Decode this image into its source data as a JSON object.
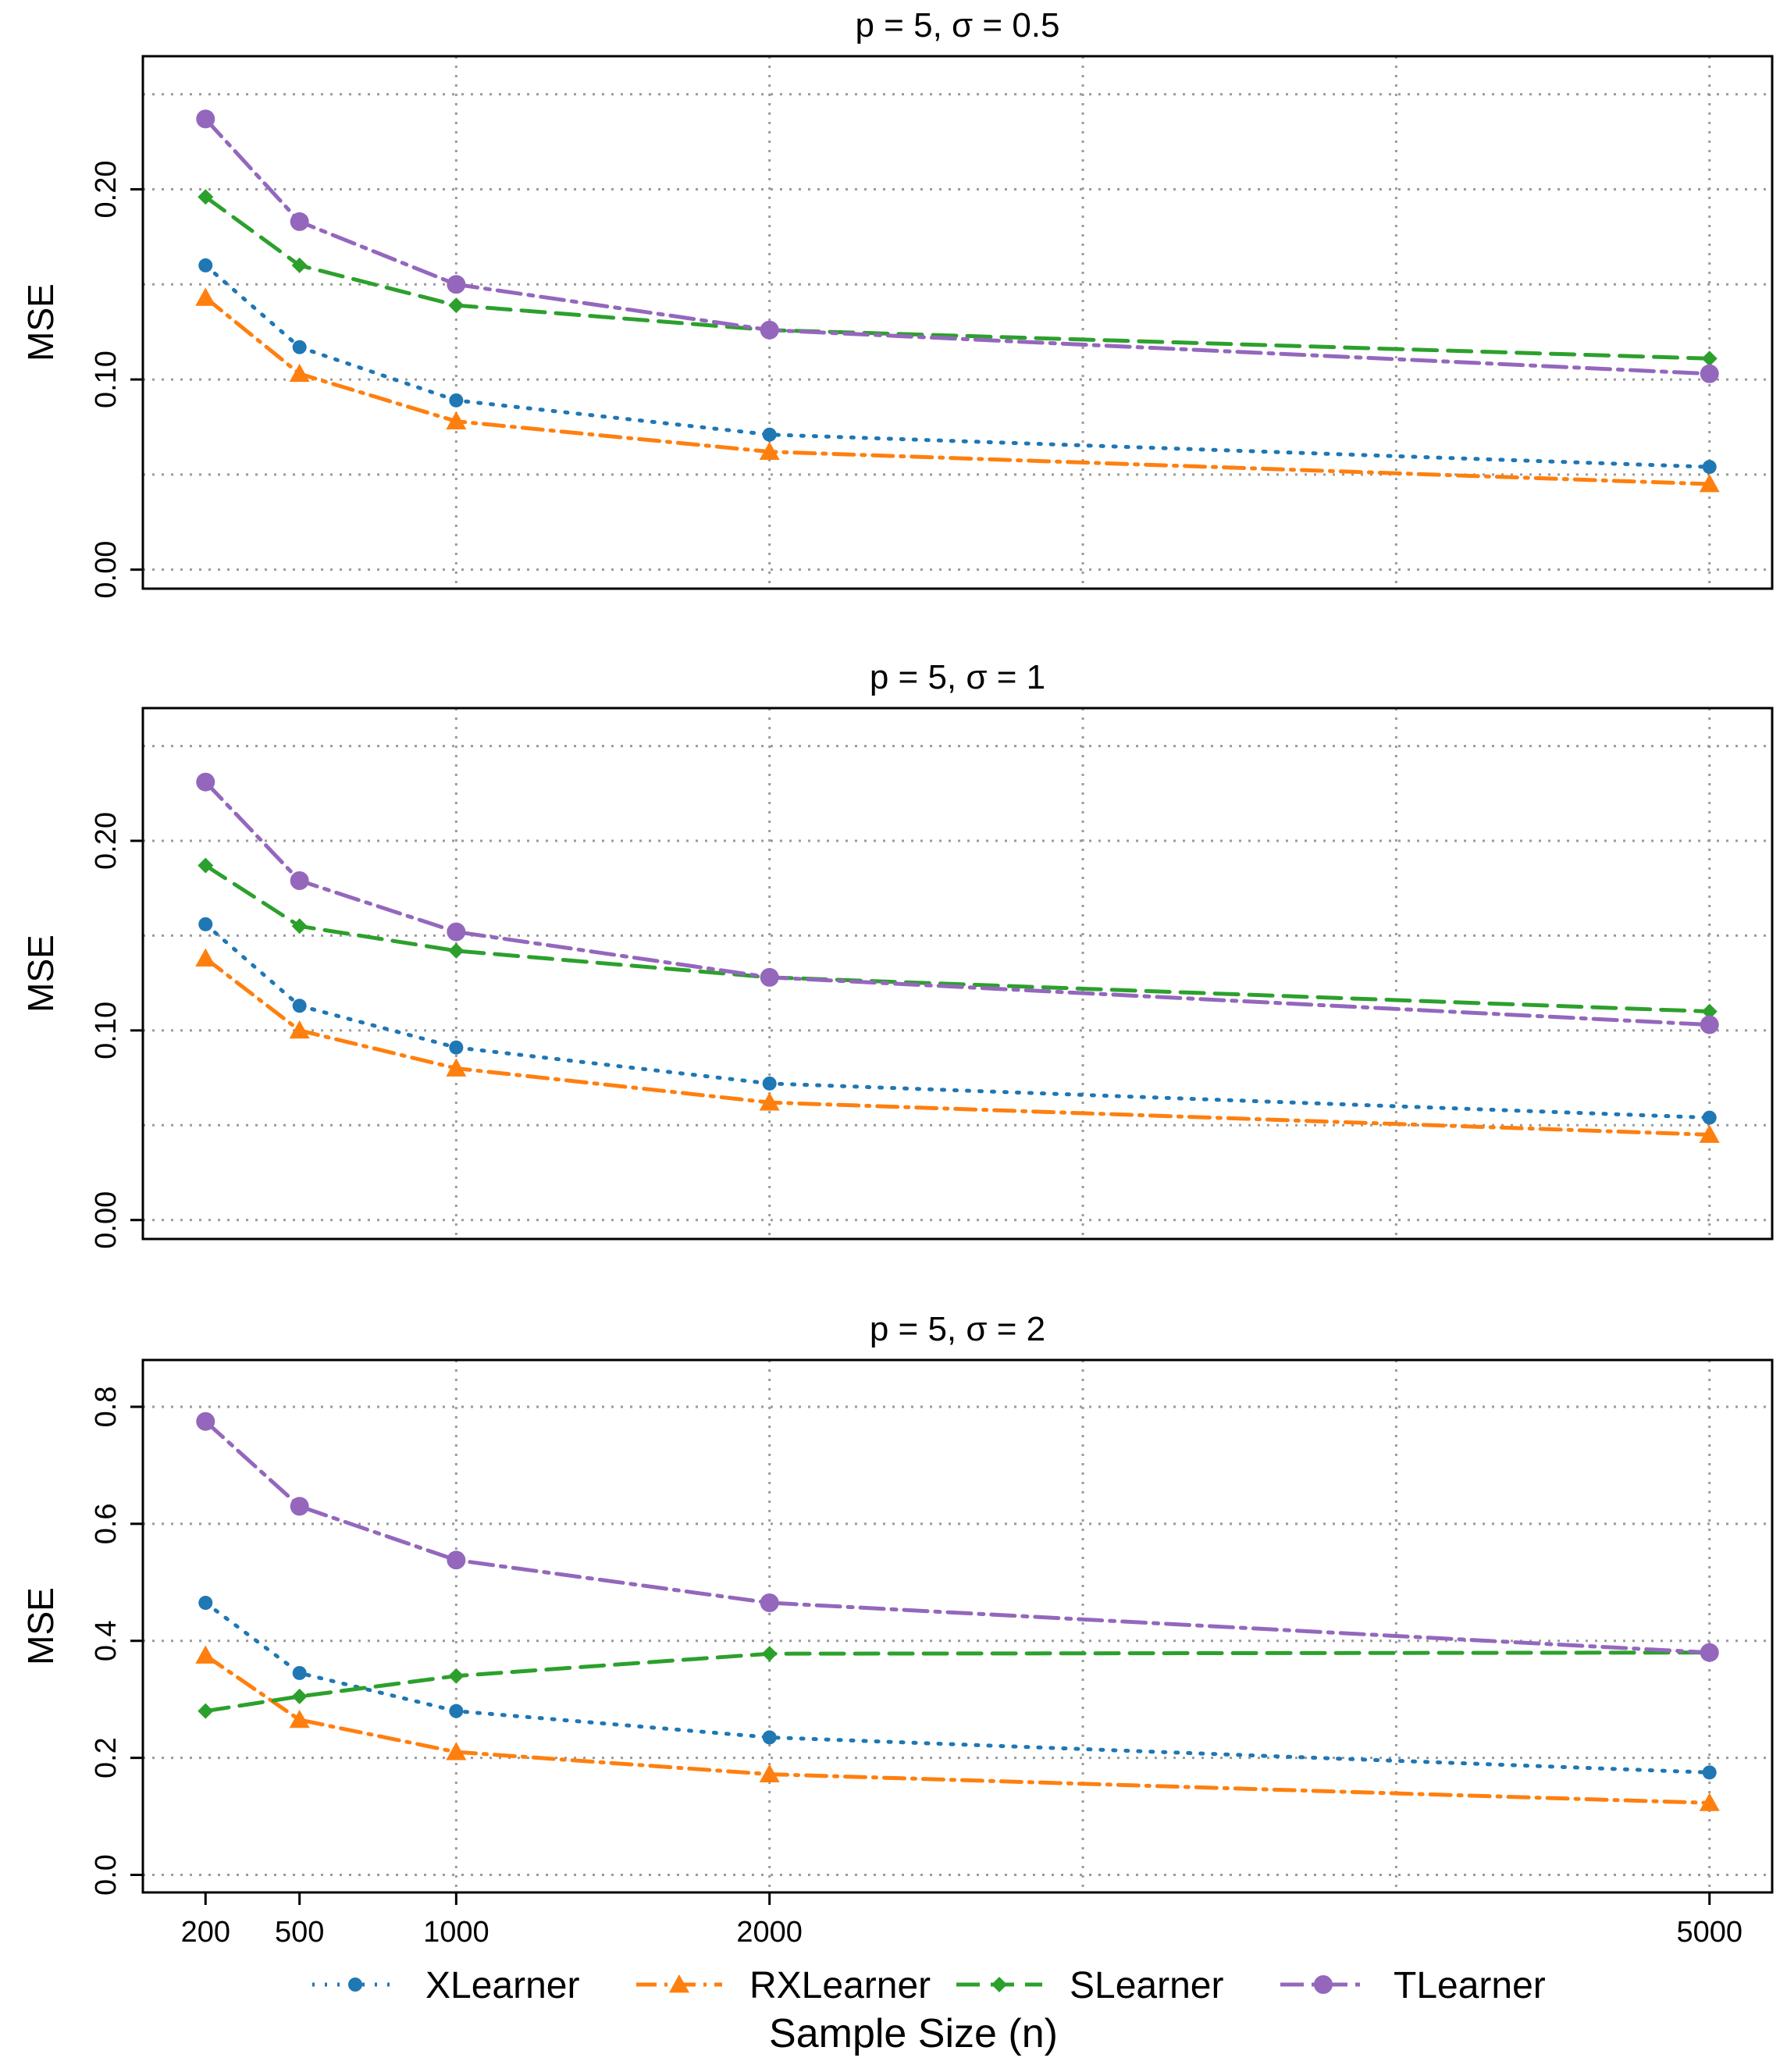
{
  "chart_data": {
    "type": "line",
    "xlabel": "Sample Size (n)",
    "ylabel": "MSE",
    "x": [
      200,
      500,
      1000,
      2000,
      5000
    ],
    "xticks": [
      "200",
      "500",
      "1000",
      "2000",
      "5000"
    ],
    "xlim": [
      0,
      5200
    ],
    "grid": true,
    "legend_position": "bottom",
    "series_styles": [
      {
        "name": "XLearner",
        "color": "#1f77b4",
        "marker": "circle",
        "dash": "dotted"
      },
      {
        "name": "RXLearner",
        "color": "#ff7f0e",
        "marker": "triangle",
        "dash": "dotdash"
      },
      {
        "name": "SLearner",
        "color": "#2ca02c",
        "marker": "diamond",
        "dash": "dashed"
      },
      {
        "name": "TLearner",
        "color": "#9467bd",
        "marker": "circle-large",
        "dash": "longdash-dot"
      }
    ],
    "panels": [
      {
        "title": "p = 5, σ = 0.5",
        "ylim": [
          -0.01,
          0.27
        ],
        "yticks": [
          0.0,
          0.1,
          0.2
        ],
        "ytick_labels": [
          "0.00",
          "0.10",
          "0.20"
        ],
        "ygrid": [
          0.0,
          0.05,
          0.1,
          0.15,
          0.2,
          0.25
        ],
        "series": [
          {
            "name": "XLearner",
            "values": [
              0.16,
              0.117,
              0.089,
              0.071,
              0.054
            ]
          },
          {
            "name": "RXLearner",
            "values": [
              0.143,
              0.103,
              0.078,
              0.062,
              0.045
            ]
          },
          {
            "name": "SLearner",
            "values": [
              0.196,
              0.16,
              0.139,
              0.126,
              0.111
            ]
          },
          {
            "name": "TLearner",
            "values": [
              0.237,
              0.183,
              0.15,
              0.126,
              0.103
            ]
          }
        ]
      },
      {
        "title": "p = 5, σ = 1",
        "ylim": [
          -0.01,
          0.27
        ],
        "yticks": [
          0.0,
          0.1,
          0.2
        ],
        "ytick_labels": [
          "0.00",
          "0.10",
          "0.20"
        ],
        "ygrid": [
          0.0,
          0.05,
          0.1,
          0.15,
          0.2,
          0.25
        ],
        "series": [
          {
            "name": "XLearner",
            "values": [
              0.156,
              0.113,
              0.091,
              0.072,
              0.054
            ]
          },
          {
            "name": "RXLearner",
            "values": [
              0.138,
              0.1,
              0.08,
              0.062,
              0.045
            ]
          },
          {
            "name": "SLearner",
            "values": [
              0.187,
              0.155,
              0.142,
              0.128,
              0.11
            ]
          },
          {
            "name": "TLearner",
            "values": [
              0.231,
              0.179,
              0.152,
              0.128,
              0.103
            ]
          }
        ]
      },
      {
        "title": "p = 5, σ = 2",
        "ylim": [
          -0.03,
          0.88
        ],
        "yticks": [
          0.0,
          0.2,
          0.4,
          0.6,
          0.8
        ],
        "ytick_labels": [
          "0.0",
          "0.2",
          "0.4",
          "0.6",
          "0.8"
        ],
        "ygrid": [
          0.0,
          0.2,
          0.4,
          0.6,
          0.8
        ],
        "series": [
          {
            "name": "XLearner",
            "values": [
              0.465,
              0.345,
              0.28,
              0.235,
              0.175
            ]
          },
          {
            "name": "RXLearner",
            "values": [
              0.375,
              0.265,
              0.21,
              0.172,
              0.123
            ]
          },
          {
            "name": "SLearner",
            "values": [
              0.28,
              0.305,
              0.34,
              0.378,
              0.38
            ]
          },
          {
            "name": "TLearner",
            "values": [
              0.775,
              0.63,
              0.538,
              0.465,
              0.38
            ]
          }
        ]
      }
    ]
  }
}
